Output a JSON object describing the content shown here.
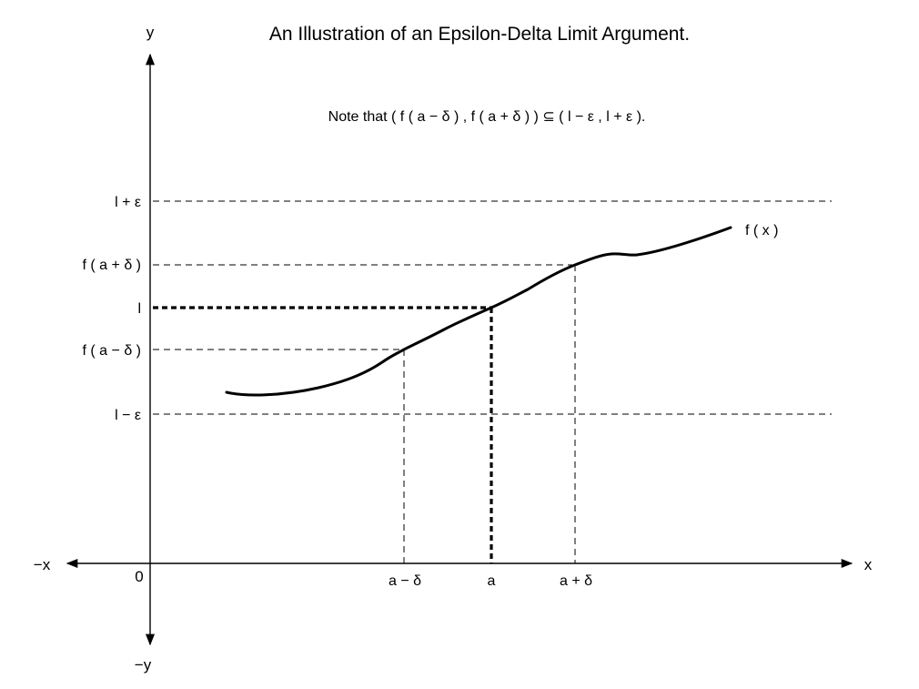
{
  "title": "An Illustration of an Epsilon-Delta Limit Argument.",
  "note": "Note that ( f ( a − δ ) , f ( a + δ ) ) ⊆ ( l − ε , l + ε ).",
  "axes": {
    "x_pos": "x",
    "x_neg": "−x",
    "y_pos": "y",
    "y_neg": "−y",
    "origin": "0"
  },
  "y_labels": {
    "l_plus_eps": "l + ε",
    "f_a_plus_delta": "f ( a + δ )",
    "l": "l",
    "f_a_minus_delta": "f ( a − δ )",
    "l_minus_eps": "l − ε"
  },
  "x_labels": {
    "a_minus_delta": "a − δ",
    "a": "a",
    "a_plus_delta": "a + δ"
  },
  "curve_label": "f ( x )"
}
